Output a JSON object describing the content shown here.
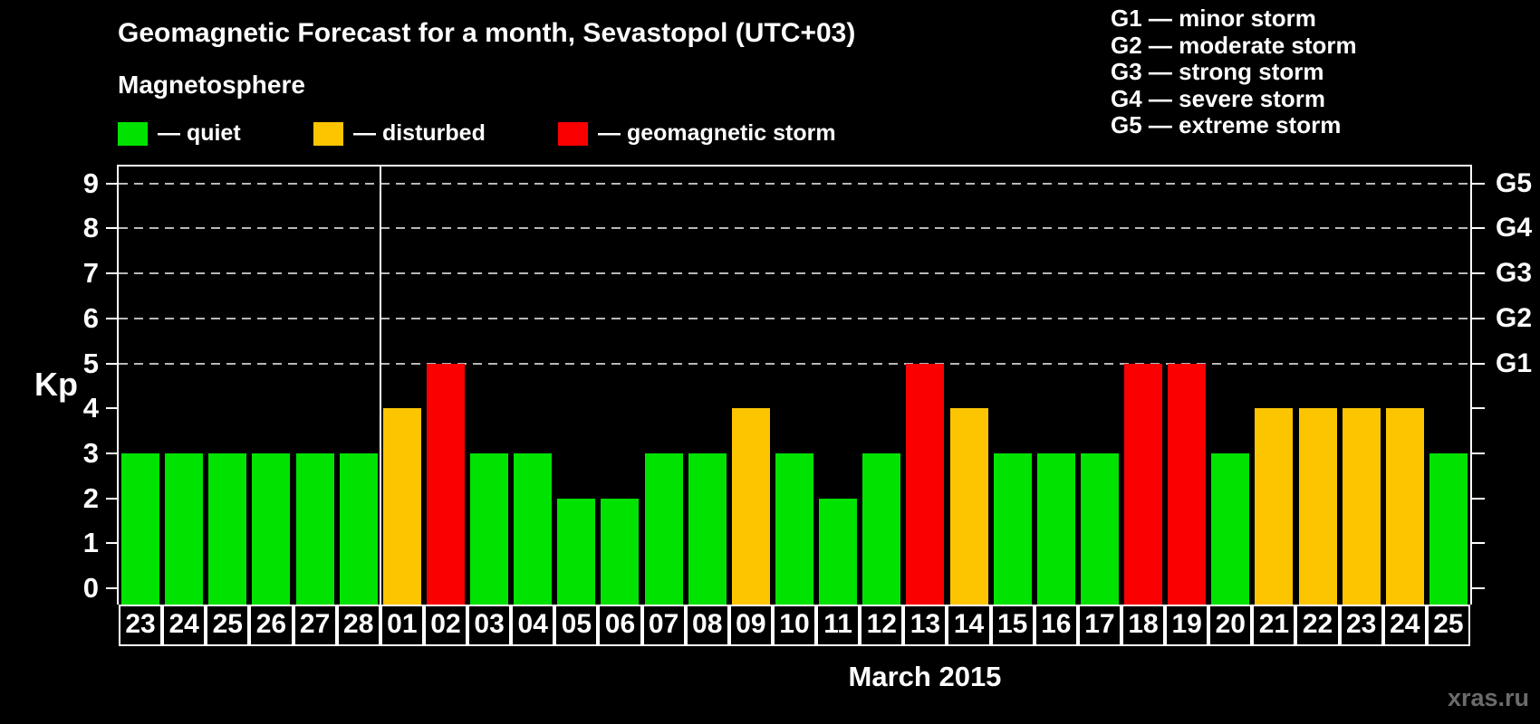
{
  "header": {
    "title": "Geomagnetic Forecast for a month, Sevastopol (UTC+03)"
  },
  "legend": {
    "title": "Magnetosphere",
    "items": [
      {
        "status": "quiet",
        "label": "— quiet",
        "color": "#00e300"
      },
      {
        "status": "disturbed",
        "label": "— disturbed",
        "color": "#fdc500"
      },
      {
        "status": "storm",
        "label": "— geomagnetic storm",
        "color": "#fb0000"
      }
    ]
  },
  "g_scale_legend": {
    "items": [
      "G1 — minor storm",
      "G2 — moderate storm",
      "G3 — strong storm",
      "G4 — severe storm",
      "G5 — extreme storm"
    ]
  },
  "axes": {
    "y_label": "Kp",
    "x_label": "March 2015"
  },
  "watermark": "xras.ru",
  "chart_data": {
    "type": "bar",
    "title": "Geomagnetic Forecast for a month, Sevastopol (UTC+03)",
    "xlabel": "March 2015",
    "ylabel": "Kp",
    "ylim": [
      0,
      9
    ],
    "y_ticks": [
      0,
      1,
      2,
      3,
      4,
      5,
      6,
      7,
      8,
      9
    ],
    "gridlines_at_kp": [
      5,
      6,
      7,
      8,
      9
    ],
    "grid_style": "dashed horizontal lines only at G-storm levels (Kp 5-9)",
    "legend_position": "top-left",
    "right_axis_labels": [
      {
        "kp": 5,
        "label": "G1"
      },
      {
        "kp": 6,
        "label": "G2"
      },
      {
        "kp": 7,
        "label": "G3"
      },
      {
        "kp": 8,
        "label": "G4"
      },
      {
        "kp": 9,
        "label": "G5"
      }
    ],
    "separator_after_index": 5,
    "categories": [
      "23",
      "24",
      "25",
      "26",
      "27",
      "28",
      "01",
      "02",
      "03",
      "04",
      "05",
      "06",
      "07",
      "08",
      "09",
      "10",
      "11",
      "12",
      "13",
      "14",
      "15",
      "16",
      "17",
      "18",
      "19",
      "20",
      "21",
      "22",
      "23",
      "24",
      "25"
    ],
    "values": [
      3,
      3,
      3,
      3,
      3,
      3,
      4,
      5,
      3,
      3,
      2,
      2,
      3,
      3,
      4,
      3,
      2,
      3,
      5,
      4,
      3,
      3,
      3,
      5,
      5,
      3,
      4,
      4,
      4,
      4,
      3
    ],
    "statuses": [
      "quiet",
      "quiet",
      "quiet",
      "quiet",
      "quiet",
      "quiet",
      "disturbed",
      "storm",
      "quiet",
      "quiet",
      "quiet",
      "quiet",
      "quiet",
      "quiet",
      "disturbed",
      "quiet",
      "quiet",
      "quiet",
      "storm",
      "disturbed",
      "quiet",
      "quiet",
      "quiet",
      "storm",
      "storm",
      "quiet",
      "disturbed",
      "disturbed",
      "disturbed",
      "disturbed",
      "quiet"
    ],
    "colors": {
      "quiet": "#00e300",
      "disturbed": "#fdc500",
      "storm": "#fb0000"
    }
  }
}
